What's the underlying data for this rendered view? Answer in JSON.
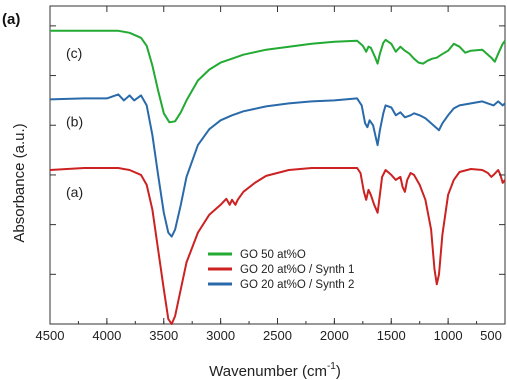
{
  "chart_data": {
    "type": "line",
    "panel_label": "(a)",
    "title": "",
    "xlabel": "Wavenumber (cm",
    "xlabel_sup": "-1",
    "xlabel_close": ")",
    "ylabel": "Absorbance (a.u.)",
    "xlim": [
      4500,
      500
    ],
    "x_reversed": true,
    "ylim": [
      0,
      3.2
    ],
    "x_ticks": [
      "4500",
      "4000",
      "3500",
      "3000",
      "2500",
      "2000",
      "1500",
      "1000",
      "500"
    ],
    "y_ticks_labeled": false,
    "grid": false,
    "legend_position": "lower-center",
    "series": [
      {
        "name": "GO 50 at%O",
        "curve_label": "(c)",
        "color": "#22aa33",
        "points": [
          [
            4500,
            2.95
          ],
          [
            4200,
            2.95
          ],
          [
            3900,
            2.95
          ],
          [
            3800,
            2.93
          ],
          [
            3700,
            2.88
          ],
          [
            3650,
            2.8
          ],
          [
            3600,
            2.6
          ],
          [
            3550,
            2.35
          ],
          [
            3500,
            2.12
          ],
          [
            3450,
            2.03
          ],
          [
            3400,
            2.04
          ],
          [
            3350,
            2.13
          ],
          [
            3300,
            2.25
          ],
          [
            3200,
            2.45
          ],
          [
            3100,
            2.56
          ],
          [
            3000,
            2.63
          ],
          [
            2900,
            2.67
          ],
          [
            2800,
            2.71
          ],
          [
            2600,
            2.76
          ],
          [
            2400,
            2.79
          ],
          [
            2200,
            2.82
          ],
          [
            2000,
            2.84
          ],
          [
            1800,
            2.85
          ],
          [
            1750,
            2.8
          ],
          [
            1720,
            2.74
          ],
          [
            1700,
            2.79
          ],
          [
            1680,
            2.78
          ],
          [
            1640,
            2.68
          ],
          [
            1620,
            2.62
          ],
          [
            1600,
            2.72
          ],
          [
            1570,
            2.83
          ],
          [
            1550,
            2.86
          ],
          [
            1500,
            2.82
          ],
          [
            1460,
            2.74
          ],
          [
            1420,
            2.79
          ],
          [
            1380,
            2.75
          ],
          [
            1340,
            2.72
          ],
          [
            1300,
            2.67
          ],
          [
            1260,
            2.63
          ],
          [
            1220,
            2.62
          ],
          [
            1180,
            2.65
          ],
          [
            1140,
            2.67
          ],
          [
            1100,
            2.68
          ],
          [
            1060,
            2.71
          ],
          [
            1000,
            2.75
          ],
          [
            950,
            2.82
          ],
          [
            900,
            2.79
          ],
          [
            850,
            2.73
          ],
          [
            800,
            2.75
          ],
          [
            700,
            2.76
          ],
          [
            620,
            2.68
          ],
          [
            590,
            2.64
          ],
          [
            560,
            2.72
          ],
          [
            520,
            2.82
          ],
          [
            500,
            2.85
          ]
        ]
      },
      {
        "name": "GO 20 at%O / Synth 1",
        "curve_label": "(a)",
        "color": "#cc2222",
        "points": [
          [
            4500,
            1.55
          ],
          [
            4200,
            1.57
          ],
          [
            3900,
            1.57
          ],
          [
            3800,
            1.55
          ],
          [
            3700,
            1.5
          ],
          [
            3650,
            1.4
          ],
          [
            3600,
            1.15
          ],
          [
            3550,
            0.75
          ],
          [
            3500,
            0.35
          ],
          [
            3460,
            0.05
          ],
          [
            3430,
            0.0
          ],
          [
            3400,
            0.08
          ],
          [
            3350,
            0.35
          ],
          [
            3300,
            0.62
          ],
          [
            3200,
            0.92
          ],
          [
            3100,
            1.1
          ],
          [
            3000,
            1.2
          ],
          [
            2950,
            1.26
          ],
          [
            2920,
            1.2
          ],
          [
            2900,
            1.25
          ],
          [
            2870,
            1.2
          ],
          [
            2850,
            1.25
          ],
          [
            2800,
            1.33
          ],
          [
            2700,
            1.42
          ],
          [
            2600,
            1.49
          ],
          [
            2400,
            1.55
          ],
          [
            2200,
            1.57
          ],
          [
            2000,
            1.57
          ],
          [
            1800,
            1.57
          ],
          [
            1770,
            1.52
          ],
          [
            1740,
            1.33
          ],
          [
            1720,
            1.25
          ],
          [
            1700,
            1.35
          ],
          [
            1680,
            1.3
          ],
          [
            1650,
            1.2
          ],
          [
            1620,
            1.12
          ],
          [
            1600,
            1.3
          ],
          [
            1580,
            1.48
          ],
          [
            1550,
            1.55
          ],
          [
            1500,
            1.5
          ],
          [
            1460,
            1.45
          ],
          [
            1420,
            1.48
          ],
          [
            1400,
            1.38
          ],
          [
            1380,
            1.33
          ],
          [
            1360,
            1.45
          ],
          [
            1330,
            1.52
          ],
          [
            1300,
            1.5
          ],
          [
            1250,
            1.4
          ],
          [
            1200,
            1.25
          ],
          [
            1150,
            0.95
          ],
          [
            1120,
            0.55
          ],
          [
            1100,
            0.4
          ],
          [
            1080,
            0.5
          ],
          [
            1050,
            0.9
          ],
          [
            1000,
            1.3
          ],
          [
            950,
            1.45
          ],
          [
            900,
            1.53
          ],
          [
            800,
            1.56
          ],
          [
            700,
            1.55
          ],
          [
            650,
            1.52
          ],
          [
            620,
            1.48
          ],
          [
            600,
            1.5
          ],
          [
            560,
            1.55
          ],
          [
            540,
            1.5
          ],
          [
            520,
            1.42
          ],
          [
            500,
            1.45
          ]
        ]
      },
      {
        "name": "GO 20 at%O / Synth 2",
        "curve_label": "(b)",
        "color": "#2a6aaa",
        "points": [
          [
            4500,
            2.26
          ],
          [
            4200,
            2.27
          ],
          [
            4000,
            2.27
          ],
          [
            3900,
            2.31
          ],
          [
            3850,
            2.25
          ],
          [
            3800,
            2.3
          ],
          [
            3760,
            2.25
          ],
          [
            3700,
            2.3
          ],
          [
            3650,
            2.2
          ],
          [
            3600,
            1.9
          ],
          [
            3550,
            1.5
          ],
          [
            3500,
            1.12
          ],
          [
            3460,
            0.92
          ],
          [
            3430,
            0.88
          ],
          [
            3400,
            0.95
          ],
          [
            3350,
            1.2
          ],
          [
            3300,
            1.48
          ],
          [
            3200,
            1.8
          ],
          [
            3100,
            1.96
          ],
          [
            3000,
            2.05
          ],
          [
            2900,
            2.1
          ],
          [
            2800,
            2.14
          ],
          [
            2600,
            2.19
          ],
          [
            2400,
            2.22
          ],
          [
            2200,
            2.24
          ],
          [
            2000,
            2.25
          ],
          [
            1800,
            2.27
          ],
          [
            1760,
            2.2
          ],
          [
            1730,
            2.02
          ],
          [
            1710,
            1.98
          ],
          [
            1690,
            2.05
          ],
          [
            1660,
            2.0
          ],
          [
            1640,
            1.9
          ],
          [
            1620,
            1.8
          ],
          [
            1600,
            1.95
          ],
          [
            1570,
            2.12
          ],
          [
            1550,
            2.2
          ],
          [
            1500,
            2.18
          ],
          [
            1460,
            2.1
          ],
          [
            1420,
            2.13
          ],
          [
            1380,
            2.08
          ],
          [
            1330,
            2.1
          ],
          [
            1300,
            2.12
          ],
          [
            1250,
            2.1
          ],
          [
            1200,
            2.07
          ],
          [
            1150,
            2.02
          ],
          [
            1100,
            1.97
          ],
          [
            1080,
            1.95
          ],
          [
            1050,
            2.02
          ],
          [
            1000,
            2.1
          ],
          [
            950,
            2.17
          ],
          [
            900,
            2.2
          ],
          [
            800,
            2.22
          ],
          [
            700,
            2.24
          ],
          [
            650,
            2.22
          ],
          [
            600,
            2.2
          ],
          [
            560,
            2.24
          ],
          [
            520,
            2.2
          ],
          [
            500,
            2.22
          ]
        ]
      }
    ]
  }
}
